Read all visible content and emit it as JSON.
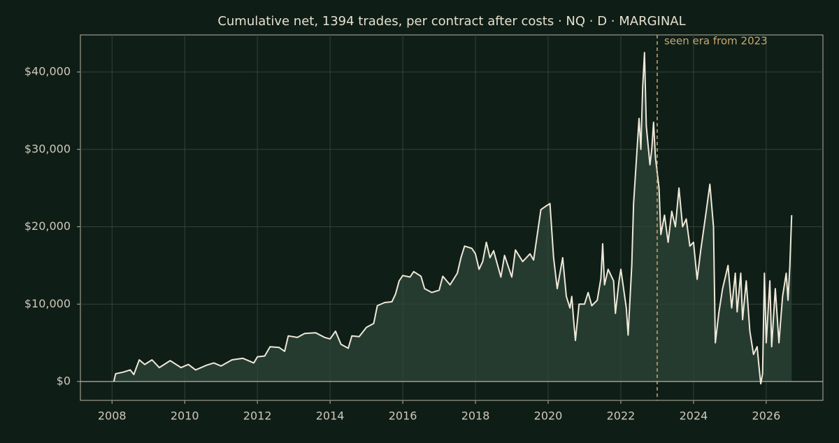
{
  "chart_data": {
    "type": "line",
    "title": "Cumulative net, 1394 trades, per contract after costs  ·  NQ · D · MARGINAL",
    "annotation": "seen era from 2023",
    "vline": 2023.0,
    "zero_line": true,
    "grid": true,
    "fill_area": true,
    "xlim": [
      2007.13,
      2027.56
    ],
    "xticks": [
      2008,
      2010,
      2012,
      2014,
      2016,
      2018,
      2020,
      2022,
      2024,
      2026
    ],
    "ylim": [
      -2438,
      44786
    ],
    "yticks": [
      {
        "value": 0,
        "label": "$0"
      },
      {
        "value": 10000,
        "label": "$10,000"
      },
      {
        "value": 20000,
        "label": "$20,000"
      },
      {
        "value": 30000,
        "label": "$30,000"
      },
      {
        "value": 40000,
        "label": "$40,000"
      }
    ],
    "series": [
      {
        "name": "Cumulative net",
        "color": "#efe8d8",
        "x": [
          2008.05,
          2008.1,
          2008.3,
          2008.5,
          2008.6,
          2008.75,
          2008.9,
          2009.1,
          2009.3,
          2009.6,
          2009.9,
          2010.1,
          2010.3,
          2010.6,
          2010.8,
          2011.0,
          2011.3,
          2011.6,
          2011.9,
          2012.0,
          2012.2,
          2012.35,
          2012.6,
          2012.75,
          2012.85,
          2013.1,
          2013.3,
          2013.6,
          2013.85,
          2014.0,
          2014.15,
          2014.3,
          2014.5,
          2014.6,
          2014.8,
          2015.0,
          2015.2,
          2015.3,
          2015.5,
          2015.7,
          2015.8,
          2015.9,
          2016.0,
          2016.2,
          2016.3,
          2016.5,
          2016.6,
          2016.8,
          2017.0,
          2017.1,
          2017.3,
          2017.5,
          2017.6,
          2017.7,
          2017.9,
          2018.0,
          2018.1,
          2018.2,
          2018.3,
          2018.4,
          2018.5,
          2018.7,
          2018.8,
          2019.0,
          2019.1,
          2019.3,
          2019.5,
          2019.6,
          2019.8,
          2019.95,
          2020.05,
          2020.15,
          2020.25,
          2020.4,
          2020.5,
          2020.6,
          2020.65,
          2020.7,
          2020.75,
          2020.85,
          2021.0,
          2021.1,
          2021.2,
          2021.35,
          2021.45,
          2021.5,
          2021.55,
          2021.65,
          2021.8,
          2021.85,
          2021.95,
          2022.0,
          2022.15,
          2022.2,
          2022.3,
          2022.35,
          2022.5,
          2022.55,
          2022.6,
          2022.65,
          2022.7,
          2022.8,
          2022.85,
          2022.9,
          2022.95,
          2023.0,
          2023.05,
          2023.1,
          2023.2,
          2023.3,
          2023.4,
          2023.5,
          2023.6,
          2023.7,
          2023.8,
          2023.9,
          2024.0,
          2024.1,
          2024.2,
          2024.35,
          2024.45,
          2024.55,
          2024.6,
          2024.7,
          2024.8,
          2024.95,
          2025.05,
          2025.15,
          2025.2,
          2025.3,
          2025.35,
          2025.45,
          2025.55,
          2025.65,
          2025.75,
          2025.8,
          2025.85,
          2025.9,
          2025.95,
          2026.0,
          2026.1,
          2026.15,
          2026.25,
          2026.35,
          2026.45,
          2026.55,
          2026.6,
          2026.65,
          2026.7
        ],
        "values": [
          0,
          1000,
          1200,
          1500,
          900,
          2800,
          2200,
          2800,
          1800,
          2700,
          1800,
          2200,
          1500,
          2100,
          2400,
          2000,
          2800,
          3000,
          2400,
          3200,
          3300,
          4500,
          4400,
          3900,
          5900,
          5700,
          6200,
          6300,
          5700,
          5500,
          6500,
          4800,
          4300,
          5900,
          5800,
          7000,
          7500,
          9800,
          10200,
          10300,
          11300,
          13000,
          13700,
          13500,
          14200,
          13600,
          12000,
          11500,
          11800,
          13600,
          12500,
          14000,
          16000,
          17500,
          17200,
          16500,
          14500,
          15500,
          18000,
          16000,
          16900,
          13500,
          16300,
          13500,
          17000,
          15500,
          16500,
          15700,
          22200,
          22700,
          23000,
          16000,
          12000,
          16000,
          11000,
          9500,
          11000,
          8000,
          5300,
          10000,
          10000,
          11500,
          9800,
          10500,
          13300,
          17800,
          12500,
          14500,
          13000,
          8800,
          13000,
          14500,
          9500,
          6000,
          15000,
          23000,
          34000,
          30000,
          38000,
          42500,
          33000,
          28000,
          30000,
          33500,
          29000,
          27000,
          25000,
          19000,
          21500,
          18000,
          22000,
          20000,
          25000,
          20000,
          21000,
          17500,
          18000,
          13200,
          17000,
          22000,
          25500,
          20000,
          5000,
          9000,
          12000,
          15000,
          9500,
          14000,
          9000,
          14000,
          8000,
          13000,
          6500,
          3500,
          4500,
          2000,
          -300,
          1000,
          14000,
          5000,
          13000,
          4500,
          12000,
          5000,
          11000,
          14000,
          10500,
          15000,
          21500
        ]
      }
    ]
  }
}
